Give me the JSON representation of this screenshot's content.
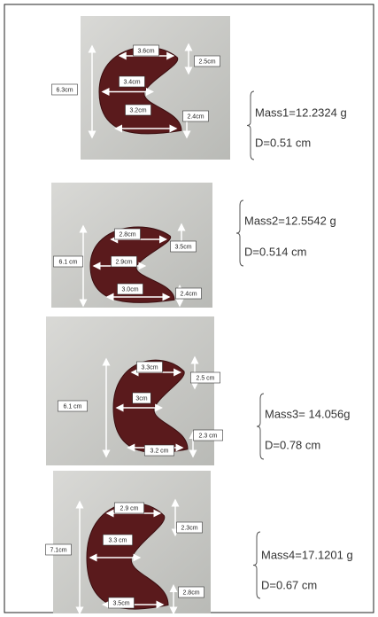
{
  "panels": [
    {
      "labels": [
        "3.6cm",
        "2.5cm",
        "6.3cm",
        "3.4cm",
        "3.2cm",
        "2.4cm"
      ],
      "mass": "Mass1=12.2324 g",
      "d": "D=0.51 cm"
    },
    {
      "labels": [
        "2.8cm",
        "3.5cm",
        "6.1 cm",
        "2.9cm",
        "3.0cm",
        "2.4cm"
      ],
      "mass": "Mass2=12.5542 g",
      "d": "D=0.514 cm"
    },
    {
      "labels": [
        "3.3cm",
        "2.5 cm",
        "3cm",
        "6.1 cm",
        "2.3 cm",
        "3.2 cm"
      ],
      "mass": "Mass3= 14.056g",
      "d": "D=0.78 cm"
    },
    {
      "labels": [
        "2.9 cm",
        "2.3cm",
        "7.1cm",
        "3.3 cm",
        "2.8cm",
        "3.5cm"
      ],
      "mass": "Mass4=17.1201 g",
      "d": "D=0.67 cm"
    }
  ]
}
